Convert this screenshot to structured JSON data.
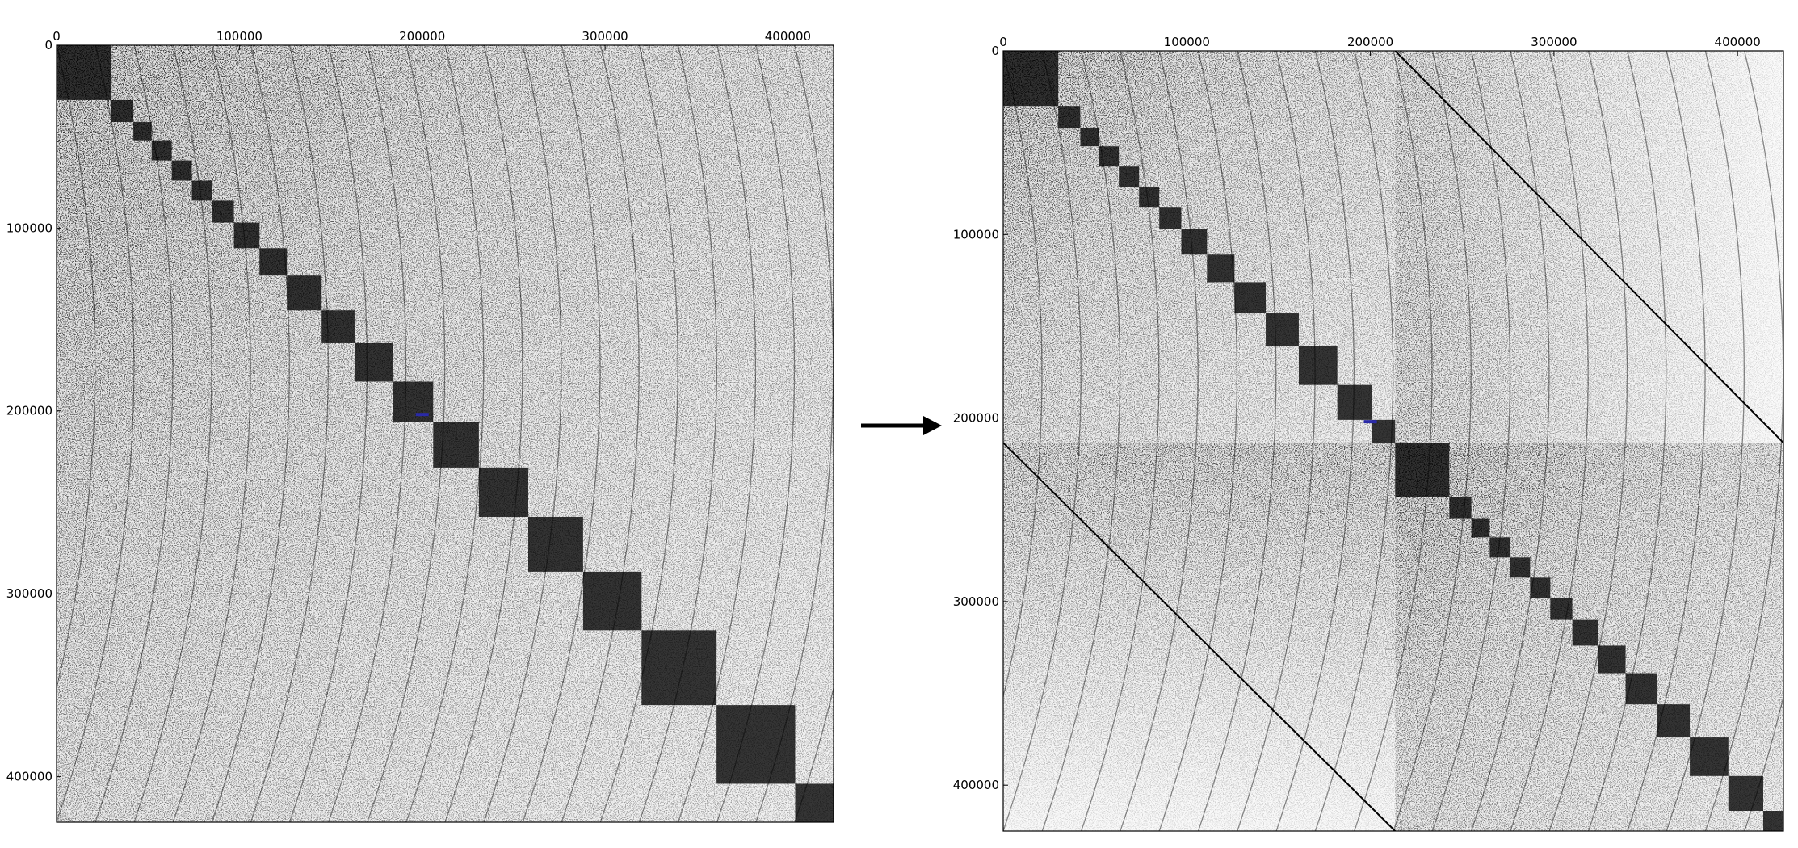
{
  "chart_data": [
    {
      "type": "heatmap",
      "title": "",
      "xlabel": "",
      "ylabel": "",
      "xlim": [
        0,
        425000
      ],
      "ylim": [
        0,
        425000
      ],
      "y_inverted": true,
      "grid": false,
      "x_ticks": [
        0,
        100000,
        200000,
        300000,
        400000
      ],
      "y_ticks": [
        0,
        100000,
        200000,
        300000,
        400000
      ],
      "x_tick_labels": [
        "0",
        "100000",
        "200000",
        "300000",
        "400000"
      ],
      "y_tick_labels": [
        "0",
        "100000",
        "200000",
        "300000",
        "400000"
      ],
      "colors": {
        "nonzero": "#000000",
        "background": "#ffffff",
        "marker": "#2a2aa8"
      },
      "diagonal_blocks": [
        [
          0,
          30000
        ],
        [
          30000,
          42000
        ],
        [
          42000,
          52000
        ],
        [
          52000,
          63000
        ],
        [
          63000,
          74000
        ],
        [
          74000,
          85000
        ],
        [
          85000,
          97000
        ],
        [
          97000,
          111000
        ],
        [
          111000,
          126000
        ],
        [
          126000,
          145000
        ],
        [
          145000,
          163000
        ],
        [
          163000,
          184000
        ],
        [
          184000,
          206000
        ],
        [
          206000,
          231000
        ],
        [
          231000,
          258000
        ],
        [
          258000,
          288000
        ],
        [
          288000,
          320000
        ],
        [
          320000,
          361000
        ],
        [
          361000,
          404000
        ],
        [
          404000,
          425000
        ]
      ],
      "marker_point": [
        200000,
        202000
      ]
    },
    {
      "type": "heatmap",
      "title": "",
      "xlabel": "",
      "ylabel": "",
      "xlim": [
        0,
        425000
      ],
      "ylim": [
        0,
        425000
      ],
      "y_inverted": true,
      "grid": false,
      "x_ticks": [
        0,
        100000,
        200000,
        300000,
        400000
      ],
      "y_ticks": [
        0,
        100000,
        200000,
        300000,
        400000
      ],
      "x_tick_labels": [
        "0",
        "100000",
        "200000",
        "300000",
        "400000"
      ],
      "y_tick_labels": [
        "0",
        "100000",
        "200000",
        "300000",
        "400000"
      ],
      "colors": {
        "nonzero": "#000000",
        "background": "#ffffff",
        "marker": "#2a2aa8"
      },
      "partition_split": 213500,
      "diagonal_blocks": [
        [
          0,
          30000
        ],
        [
          30000,
          42000
        ],
        [
          42000,
          52000
        ],
        [
          52000,
          63000
        ],
        [
          63000,
          74000
        ],
        [
          74000,
          85000
        ],
        [
          85000,
          97000
        ],
        [
          97000,
          111000
        ],
        [
          111000,
          126000
        ],
        [
          126000,
          143000
        ],
        [
          143000,
          161000
        ],
        [
          161000,
          182000
        ],
        [
          182000,
          201000
        ],
        [
          201000,
          213500
        ],
        [
          213500,
          243000
        ],
        [
          243000,
          255000
        ],
        [
          255000,
          265000
        ],
        [
          265000,
          276000
        ],
        [
          276000,
          287000
        ],
        [
          287000,
          298000
        ],
        [
          298000,
          310000
        ],
        [
          310000,
          324000
        ],
        [
          324000,
          339000
        ],
        [
          339000,
          356000
        ],
        [
          356000,
          374000
        ],
        [
          374000,
          395000
        ],
        [
          395000,
          414000
        ],
        [
          414000,
          425000
        ]
      ],
      "off_diagonal_lines": [
        {
          "from": [
            213500,
            0
          ],
          "to": [
            425000,
            213500
          ]
        },
        {
          "from": [
            0,
            213500
          ],
          "to": [
            213500,
            425000
          ]
        }
      ],
      "marker_point": [
        200000,
        202000
      ]
    }
  ],
  "arrow": {
    "icon": "right-arrow-icon"
  }
}
